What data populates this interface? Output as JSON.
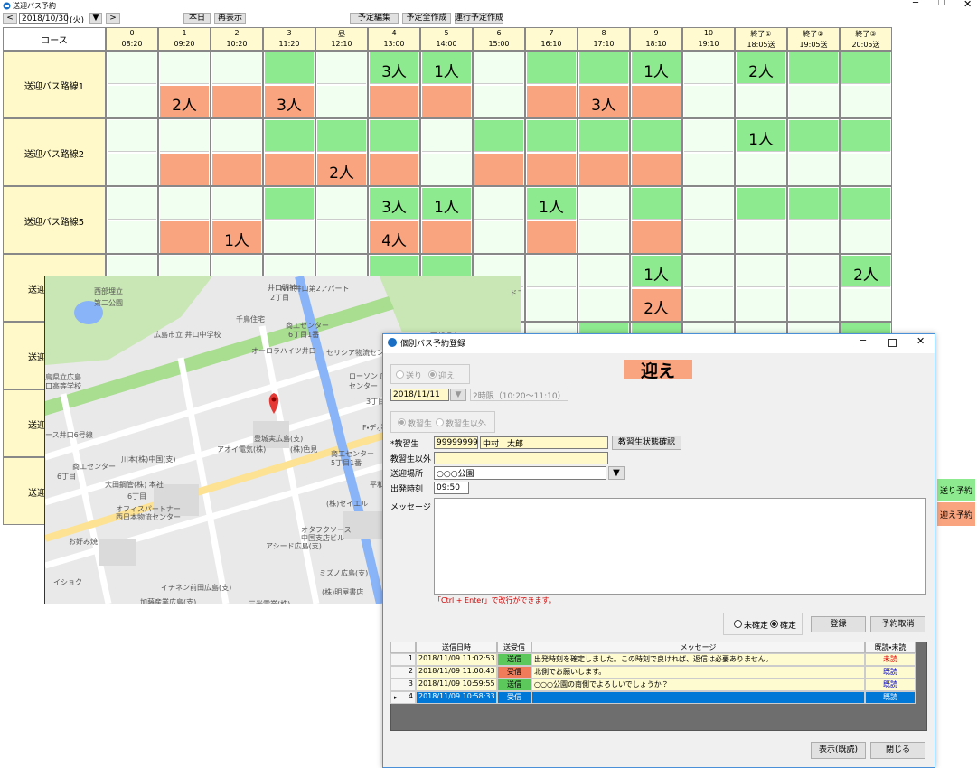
{
  "main_window": {
    "title": "送迎バス予約",
    "toolbar": {
      "prev": "<",
      "date": "2018/10/30",
      "weekday": "(火)",
      "dropdown": "▼",
      "next": ">",
      "today": "本日",
      "refresh": "再表示",
      "edit": "予定編集",
      "create_all": "予定全作成",
      "create_run": "運行予定作成"
    }
  },
  "grid": {
    "course_header": "コース",
    "send_color": "#8eea8e",
    "pickup_color": "#f9a47f",
    "empty_color": "#f0fff0",
    "columns": [
      {
        "label": "0",
        "time": "08:20"
      },
      {
        "label": "1",
        "time": "09:20"
      },
      {
        "label": "2",
        "time": "10:20"
      },
      {
        "label": "3",
        "time": "11:20"
      },
      {
        "label": "昼",
        "time": "12:10"
      },
      {
        "label": "4",
        "time": "13:00"
      },
      {
        "label": "5",
        "time": "14:00"
      },
      {
        "label": "6",
        "time": "15:00"
      },
      {
        "label": "7",
        "time": "16:10"
      },
      {
        "label": "8",
        "time": "17:10"
      },
      {
        "label": "9",
        "time": "18:10"
      },
      {
        "label": "10",
        "time": "19:10"
      },
      {
        "label": "終了①",
        "time": "18:05送"
      },
      {
        "label": "終了②",
        "time": "19:05送"
      },
      {
        "label": "終了③",
        "time": "20:05送"
      }
    ],
    "rows": [
      {
        "name": "送迎バス路線1",
        "send": [
          false,
          false,
          false,
          true,
          false,
          "3人",
          "1人",
          false,
          true,
          true,
          "1人",
          false,
          "2人",
          true,
          true
        ],
        "pickup": [
          false,
          "2人",
          true,
          "3人",
          false,
          true,
          true,
          false,
          true,
          "3人",
          true,
          false,
          false,
          false,
          false
        ]
      },
      {
        "name": "送迎バス路線2",
        "send": [
          false,
          false,
          false,
          true,
          true,
          true,
          false,
          true,
          true,
          true,
          true,
          false,
          "1人",
          true,
          true
        ],
        "pickup": [
          false,
          true,
          true,
          true,
          "2人",
          true,
          false,
          true,
          true,
          true,
          true,
          false,
          false,
          false,
          false
        ]
      },
      {
        "name": "送迎バス路線5",
        "send": [
          false,
          false,
          false,
          true,
          false,
          "3人",
          "1人",
          false,
          "1人",
          false,
          true,
          false,
          true,
          true,
          true
        ],
        "pickup": [
          false,
          true,
          "1人",
          false,
          false,
          "4人",
          true,
          false,
          true,
          false,
          true,
          false,
          false,
          false,
          false
        ]
      },
      {
        "name": "送迎",
        "send": [
          false,
          false,
          false,
          false,
          false,
          true,
          true,
          false,
          false,
          false,
          "1人",
          false,
          false,
          false,
          "2人"
        ],
        "pickup": [
          false,
          false,
          false,
          false,
          false,
          false,
          false,
          false,
          false,
          false,
          "2人",
          false,
          false,
          false,
          false
        ]
      },
      {
        "name": "送迎",
        "send": [
          false,
          false,
          false,
          false,
          false,
          false,
          false,
          false,
          false,
          true,
          true,
          false,
          false,
          false,
          true
        ],
        "pickup": [
          false,
          false,
          false,
          false,
          false,
          false,
          false,
          false,
          false,
          false,
          false,
          false,
          false,
          false,
          false
        ]
      },
      {
        "name": "送迎",
        "send": [
          false,
          false,
          false,
          false,
          false,
          false,
          false,
          false,
          false,
          false,
          false,
          false,
          false,
          false,
          false
        ],
        "pickup": [
          false,
          false,
          false,
          false,
          false,
          false,
          false,
          false,
          false,
          false,
          false,
          false,
          false,
          false,
          false
        ]
      },
      {
        "name": "送迎",
        "send": [
          false,
          false,
          false,
          false,
          false,
          false,
          false,
          false,
          false,
          false,
          false,
          false,
          false,
          false,
          false
        ],
        "pickup": [
          false,
          false,
          false,
          false,
          false,
          false,
          false,
          false,
          false,
          false,
          false,
          false,
          false,
          false,
          false
        ]
      }
    ]
  },
  "legend": {
    "send": "送り予約",
    "pickup": "迎え予約"
  },
  "map": {
    "labels": [
      "西部埋立",
      "第二公園",
      "広島市立 井口中学校",
      "千鳥住宅",
      "オーロラハイツ井口",
      "井口明神",
      "2丁目",
      "NTT井口第2アパート",
      "商工センター",
      "6丁目1番",
      "セリシア物流センター",
      "ローソン 広",
      "センター",
      "3丁目",
      "西部埋立",
      "鳥県立広島",
      "口高等学校",
      "ース井口6号線",
      "商工センター",
      "6丁目",
      "川本(株)中国(支)",
      "アオイ電気(株)",
      "(株)色見",
      "豊城実広島(支)",
      "F・デポ",
      "商工センター",
      "5丁目1番",
      "大田鋼管(株) 本社",
      "6丁目",
      "オフィスパートナー",
      "西日本物流センター",
      "(株)セイエル",
      "お好み焼",
      "オタフクソース",
      "中国支店ビル",
      "アシード広島(支)",
      "ミズノ広島(支)",
      "(株)明屋書店",
      "イショク",
      "イチネン前田広島(支)",
      "加藤産業広島(支)",
      "三光電業(株)",
      "ドコモ",
      "平和"
    ]
  },
  "dialog": {
    "title": "個別バス予約登録",
    "direction_options": [
      "送り",
      "迎え"
    ],
    "mode_label": "迎え",
    "mode_color": "#f9a47f",
    "date": "2018/11/11",
    "date_button": "▼",
    "period": "2時限（10:20～11:10）",
    "student_options": [
      "教習生",
      "教習生以外"
    ],
    "student_label": "*教習生",
    "student_id": "99999999",
    "student_name": "中村　太郎",
    "status_button": "教習生状態確認",
    "other_label": "教習生以外",
    "place_label": "送迎場所",
    "place": "○○○公園",
    "place_button": "▼",
    "time_label": "出発時刻",
    "time": "09:50",
    "message_label": "メッセージ",
    "hint": "「Ctrl + Enter」で改行ができます。",
    "confirm_options": [
      "未確定",
      "確定"
    ],
    "register_button": "登録",
    "cancel_button": "予約取消",
    "table": {
      "headers": [
        "送信日時",
        "送受信",
        "メッセージ",
        "既読・未読"
      ],
      "rows": [
        {
          "no": "1",
          "datetime": "2018/11/09 11:02:53",
          "direction": "送信",
          "direction_color": "#5cc85c",
          "message": "出発時刻を確定しました。この時刻で良ければ、返信は必要ありません。",
          "status": "未読",
          "status_color": "#e00000",
          "selected": false
        },
        {
          "no": "2",
          "datetime": "2018/11/09 11:00:43",
          "direction": "受信",
          "direction_color": "#f07b5a",
          "message": "北側でお願いします。",
          "status": "既読",
          "status_color": "#0000c8",
          "selected": false
        },
        {
          "no": "3",
          "datetime": "2018/11/09 10:59:55",
          "direction": "送信",
          "direction_color": "#5cc85c",
          "message": "○○○公園の南側でよろしいでしょうか？",
          "status": "既読",
          "status_color": "#0000c8",
          "selected": false
        },
        {
          "no": "4",
          "datetime": "2018/11/09 10:58:33",
          "direction": "受信",
          "direction_color": "#0078d7",
          "message": null,
          "status": "既読",
          "status_color": "#ffffff",
          "selected": true
        }
      ]
    },
    "show_button": "表示(既読)",
    "close_button": "閉じる"
  }
}
